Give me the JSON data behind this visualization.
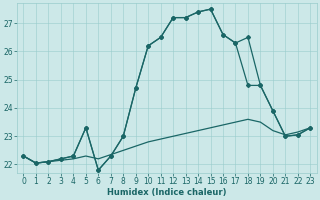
{
  "xlabel": "Humidex (Indice chaleur)",
  "xlim": [
    -0.5,
    23.5
  ],
  "ylim": [
    21.7,
    27.7
  ],
  "yticks": [
    22,
    23,
    24,
    25,
    26,
    27
  ],
  "xticks": [
    0,
    1,
    2,
    3,
    4,
    5,
    6,
    7,
    8,
    9,
    10,
    11,
    12,
    13,
    14,
    15,
    16,
    17,
    18,
    19,
    20,
    21,
    22,
    23
  ],
  "bg_color": "#cce8e8",
  "grid_color": "#99cccc",
  "line_color": "#1a6666",
  "line1_x": [
    0,
    1,
    2,
    3,
    4,
    5,
    6,
    7,
    8,
    9,
    10,
    11,
    12,
    13,
    14,
    15,
    16,
    17,
    18,
    19,
    20,
    21,
    22,
    23
  ],
  "line1_y": [
    22.3,
    22.05,
    22.1,
    22.15,
    22.2,
    22.3,
    22.2,
    22.35,
    22.5,
    22.65,
    22.8,
    22.9,
    23.0,
    23.1,
    23.2,
    23.3,
    23.4,
    23.5,
    23.6,
    23.5,
    23.2,
    23.05,
    23.15,
    23.3
  ],
  "line2_x": [
    0,
    1,
    2,
    3,
    4,
    5,
    6,
    7,
    8,
    9,
    10,
    11,
    12,
    13,
    14,
    15,
    16,
    17,
    18,
    19,
    20,
    21,
    22,
    23
  ],
  "line2_y": [
    22.3,
    22.05,
    22.1,
    22.2,
    22.3,
    23.3,
    21.8,
    22.3,
    23.0,
    24.7,
    26.2,
    26.5,
    27.2,
    27.2,
    27.4,
    27.5,
    26.6,
    26.3,
    26.5,
    24.8,
    23.9,
    23.0,
    23.05,
    23.3
  ],
  "line3_x": [
    0,
    1,
    2,
    3,
    4,
    5,
    6,
    7,
    8,
    9,
    10,
    11,
    12,
    13,
    14,
    15,
    16,
    17,
    18,
    19,
    20,
    21,
    22,
    23
  ],
  "line3_y": [
    22.3,
    22.05,
    22.1,
    22.2,
    22.3,
    23.3,
    21.8,
    22.3,
    23.0,
    24.7,
    26.2,
    26.5,
    27.2,
    27.2,
    27.4,
    27.5,
    26.6,
    26.3,
    24.8,
    24.8,
    23.9,
    23.0,
    23.05,
    23.3
  ],
  "markersize": 2.0,
  "linewidth": 0.9
}
